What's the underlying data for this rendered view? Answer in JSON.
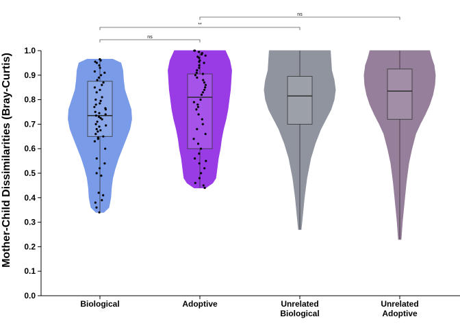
{
  "colors": {
    "axis": "#000000",
    "text": "#000000"
  },
  "chart_data": {
    "type": "violin",
    "ylabel": "Mother-Child Dissimilarities (Bray-Curtis)",
    "xlabel": "",
    "ylim": [
      0,
      1.0
    ],
    "yticks": [
      "0.0",
      "0.1",
      "0.2",
      "0.3",
      "0.4",
      "0.5",
      "0.6",
      "0.7",
      "0.8",
      "0.9",
      "1.0"
    ],
    "grid": false,
    "groups": [
      {
        "label": [
          "Biological"
        ],
        "color": "#7a9be8",
        "min": 0.34,
        "q1": 0.65,
        "median": 0.735,
        "q3": 0.875,
        "max": 0.965,
        "violin": [
          [
            0.34,
            0.012
          ],
          [
            0.36,
            0.028
          ],
          [
            0.4,
            0.034
          ],
          [
            0.44,
            0.036
          ],
          [
            0.48,
            0.04
          ],
          [
            0.52,
            0.048
          ],
          [
            0.56,
            0.058
          ],
          [
            0.6,
            0.07
          ],
          [
            0.64,
            0.082
          ],
          [
            0.68,
            0.094
          ],
          [
            0.72,
            0.1
          ],
          [
            0.76,
            0.098
          ],
          [
            0.8,
            0.088
          ],
          [
            0.84,
            0.078
          ],
          [
            0.88,
            0.074
          ],
          [
            0.92,
            0.072
          ],
          [
            0.95,
            0.066
          ],
          [
            0.965,
            0.04
          ]
        ],
        "points": [
          0.965,
          0.96,
          0.955,
          0.95,
          0.94,
          0.93,
          0.915,
          0.91,
          0.9,
          0.89,
          0.88,
          0.87,
          0.86,
          0.85,
          0.84,
          0.83,
          0.81,
          0.8,
          0.795,
          0.785,
          0.78,
          0.77,
          0.765,
          0.76,
          0.75,
          0.745,
          0.74,
          0.735,
          0.73,
          0.725,
          0.72,
          0.71,
          0.7,
          0.695,
          0.69,
          0.68,
          0.675,
          0.67,
          0.66,
          0.65,
          0.645,
          0.64,
          0.63,
          0.6,
          0.56,
          0.54,
          0.52,
          0.5,
          0.49,
          0.42,
          0.41,
          0.39,
          0.38,
          0.36,
          0.34
        ]
      },
      {
        "label": [
          "Adoptive"
        ],
        "color": "#9a3ce6",
        "min": 0.44,
        "q1": 0.6,
        "median": 0.81,
        "q3": 0.905,
        "max": 1.0,
        "violin": [
          [
            0.44,
            0.018
          ],
          [
            0.46,
            0.04
          ],
          [
            0.48,
            0.05
          ],
          [
            0.52,
            0.054
          ],
          [
            0.56,
            0.058
          ],
          [
            0.6,
            0.064
          ],
          [
            0.64,
            0.068
          ],
          [
            0.68,
            0.074
          ],
          [
            0.72,
            0.082
          ],
          [
            0.76,
            0.088
          ],
          [
            0.8,
            0.092
          ],
          [
            0.84,
            0.096
          ],
          [
            0.88,
            0.098
          ],
          [
            0.92,
            0.1
          ],
          [
            0.96,
            0.094
          ],
          [
            1.0,
            0.08
          ]
        ],
        "points": [
          1.0,
          1.0,
          0.995,
          0.99,
          0.985,
          0.98,
          0.975,
          0.97,
          0.96,
          0.955,
          0.95,
          0.94,
          0.93,
          0.92,
          0.91,
          0.905,
          0.9,
          0.89,
          0.88,
          0.87,
          0.86,
          0.85,
          0.84,
          0.83,
          0.82,
          0.8,
          0.79,
          0.78,
          0.77,
          0.76,
          0.74,
          0.72,
          0.7,
          0.68,
          0.66,
          0.64,
          0.62,
          0.6,
          0.58,
          0.56,
          0.55,
          0.54,
          0.52,
          0.5,
          0.48,
          0.46,
          0.45,
          0.44
        ]
      },
      {
        "label": [
          "Unrelated",
          "Biological"
        ],
        "color": "#8f949e",
        "min": 0.27,
        "q1": 0.7,
        "median": 0.815,
        "q3": 0.895,
        "max": 1.0,
        "violin": [
          [
            0.27,
            0.004
          ],
          [
            0.32,
            0.008
          ],
          [
            0.4,
            0.014
          ],
          [
            0.48,
            0.022
          ],
          [
            0.56,
            0.034
          ],
          [
            0.62,
            0.048
          ],
          [
            0.68,
            0.066
          ],
          [
            0.72,
            0.082
          ],
          [
            0.76,
            0.098
          ],
          [
            0.8,
            0.108
          ],
          [
            0.84,
            0.112
          ],
          [
            0.88,
            0.108
          ],
          [
            0.92,
            0.1
          ],
          [
            0.96,
            0.098
          ],
          [
            1.0,
            0.096
          ]
        ],
        "points": []
      },
      {
        "label": [
          "Unrelated",
          "Adoptive"
        ],
        "color": "#967f9b",
        "min": 0.23,
        "q1": 0.72,
        "median": 0.835,
        "q3": 0.925,
        "max": 1.0,
        "violin": [
          [
            0.23,
            0.004
          ],
          [
            0.3,
            0.008
          ],
          [
            0.38,
            0.014
          ],
          [
            0.46,
            0.02
          ],
          [
            0.54,
            0.028
          ],
          [
            0.6,
            0.038
          ],
          [
            0.66,
            0.05
          ],
          [
            0.7,
            0.064
          ],
          [
            0.74,
            0.08
          ],
          [
            0.78,
            0.094
          ],
          [
            0.82,
            0.104
          ],
          [
            0.86,
            0.11
          ],
          [
            0.9,
            0.112
          ],
          [
            0.94,
            0.108
          ],
          [
            0.97,
            0.1
          ],
          [
            1.0,
            0.094
          ]
        ],
        "points": []
      }
    ],
    "comparisons": [
      {
        "from": 0,
        "to": 1,
        "label": "ns",
        "level": 0
      },
      {
        "from": 0,
        "to": 2,
        "label": "**",
        "level": 1
      },
      {
        "from": 1,
        "to": 3,
        "label": "ns",
        "level": 2
      }
    ]
  }
}
